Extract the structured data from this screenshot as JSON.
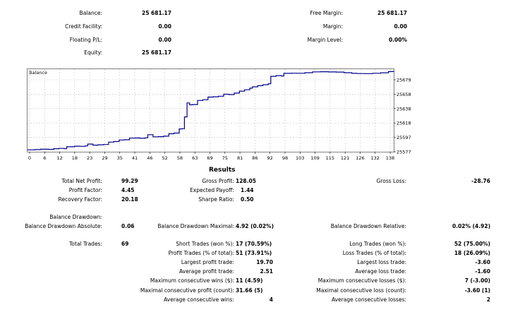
{
  "account": {
    "balance": {
      "label": "Balance:",
      "value": "25 681.17"
    },
    "credit_facility": {
      "label": "Credit Facility:",
      "value": "0.00"
    },
    "floating_pl": {
      "label": "Floating P/L:",
      "value": "0.00"
    },
    "equity": {
      "label": "Equity:",
      "value": "25 681.17"
    },
    "free_margin": {
      "label": "Free Margin:",
      "value": "25 681.17"
    },
    "margin": {
      "label": "Margin:",
      "value": "0.00"
    },
    "margin_level": {
      "label": "Margin Level:",
      "value": "0.00%"
    }
  },
  "chart_data": {
    "type": "line",
    "title": "Balance",
    "x_tick_labels": [
      "0",
      "6",
      "12",
      "18",
      "23",
      "29",
      "35",
      "41",
      "46",
      "52",
      "58",
      "63",
      "69",
      "75",
      "81",
      "86",
      "92",
      "98",
      "103",
      "109",
      "115",
      "121",
      "126",
      "132",
      "138"
    ],
    "y_tick_labels": [
      "25679",
      "25658",
      "25638",
      "25618",
      "25597",
      "25577"
    ],
    "ylim": [
      25577,
      25679
    ],
    "xlim": [
      0,
      140
    ],
    "grid": true,
    "line_color": "#00008b",
    "series": [
      {
        "x": [
          0,
          3,
          5,
          8,
          10,
          12,
          14,
          15,
          18,
          20,
          22,
          23,
          25,
          27,
          29,
          31,
          33,
          35,
          37,
          39,
          41,
          43,
          45,
          46,
          48,
          50,
          52,
          54,
          56,
          58,
          59,
          60,
          61,
          62,
          63,
          65,
          67,
          69,
          71,
          73,
          75,
          77,
          79,
          81,
          83,
          85,
          86,
          88,
          90,
          92,
          93,
          95,
          97,
          98,
          101,
          103,
          106,
          109,
          112,
          115,
          118,
          121,
          124,
          126,
          129,
          132,
          135,
          138,
          140
        ],
        "y": [
          25579.5,
          25579.8,
          25580.3,
          25580.1,
          25581.0,
          25581.4,
          25580.9,
          25583.5,
          25584.2,
          25584.0,
          25584.6,
          25586.9,
          25585.6,
          25586.0,
          25586.4,
          25589.5,
          25590.2,
          25592.2,
          25592.5,
          25594.6,
          25594.8,
          25594.4,
          25595.0,
          25599.0,
          25596.3,
          25596.5,
          25597.1,
          25600.2,
          25601.1,
          25606.5,
          25606.8,
          25622.0,
          25640.0,
          25637.6,
          25637.9,
          25643.2,
          25644.1,
          25647.6,
          25647.9,
          25648.7,
          25651.2,
          25650.8,
          25652.7,
          25655.2,
          25657.0,
          25659.1,
          25660.8,
          25662.2,
          25663.5,
          25664.7,
          25674.4,
          25675.3,
          25674.8,
          25678.2,
          25678.4,
          25678.3,
          25679.0,
          25680.1,
          25680.3,
          25680.0,
          25679.8,
          25679.0,
          25678.2,
          25677.9,
          25677.8,
          25678.3,
          25678.9,
          25680.5,
          25681.17
        ]
      }
    ]
  },
  "results": {
    "title": "Results",
    "total_net_profit": {
      "label": "Total Net Profit:",
      "value": "99.29"
    },
    "gross_profit": {
      "label": "Gross Profit:",
      "value": "128.05"
    },
    "gross_loss": {
      "label": "Gross Loss:",
      "value": "-28.76"
    },
    "profit_factor": {
      "label": "Profit Factor:",
      "value": "4.45"
    },
    "expected_payoff": {
      "label": "Expected Payoff:",
      "value": "1.44"
    },
    "recovery_factor": {
      "label": "Recovery Factor:",
      "value": "20.18"
    },
    "sharpe_ratio": {
      "label": "Sharpe Ratio:",
      "value": "0.50"
    },
    "balance_drawdown": {
      "label": "Balance Drawdown:"
    },
    "balance_drawdown_absolute": {
      "label": "Balance Drawdown Absolute:",
      "value": "0.06"
    },
    "balance_drawdown_maximal": {
      "label": "Balance Drawdown Maximal:",
      "value": "4.92 (0.02%)"
    },
    "balance_drawdown_relative": {
      "label": "Balance Drawdown Relative:",
      "value": "0.02% (4.92)"
    },
    "total_trades": {
      "label": "Total Trades:",
      "value": "69"
    },
    "short_trades": {
      "label": "Short Trades (won %):",
      "value": "17 (70.59%)"
    },
    "long_trades": {
      "label": "Long Trades (won %):",
      "value": "52 (75.00%)"
    },
    "profit_trades": {
      "label": "Profit Trades (% of total):",
      "value": "51 (73.91%)"
    },
    "loss_trades": {
      "label": "Loss Trades (% of total):",
      "value": "18 (26.09%)"
    },
    "largest_profit_trade": {
      "label": "Largest profit trade:",
      "value": "19.70"
    },
    "largest_loss_trade": {
      "label": "Largest loss trade:",
      "value": "-3.60"
    },
    "average_profit_trade": {
      "label": "Average profit trade:",
      "value": "2.51"
    },
    "average_loss_trade": {
      "label": "Average loss trade:",
      "value": "-1.60"
    },
    "max_consecutive_wins": {
      "label": "Maximum consecutive wins ($):",
      "value": "11 (4.59)"
    },
    "max_consecutive_losses": {
      "label": "Maximum consecutive losses ($):",
      "value": "7 (-3.00)"
    },
    "maximal_consecutive_profit": {
      "label": "Maximal consecutive profit (count):",
      "value": "31.66 (5)"
    },
    "maximal_consecutive_loss": {
      "label": "Maximal consecutive loss (count):",
      "value": "-3.60 (1)"
    },
    "average_consecutive_wins": {
      "label": "Average consecutive wins:",
      "value": "4"
    },
    "average_consecutive_losses": {
      "label": "Average consecutive losses:",
      "value": "2"
    }
  }
}
